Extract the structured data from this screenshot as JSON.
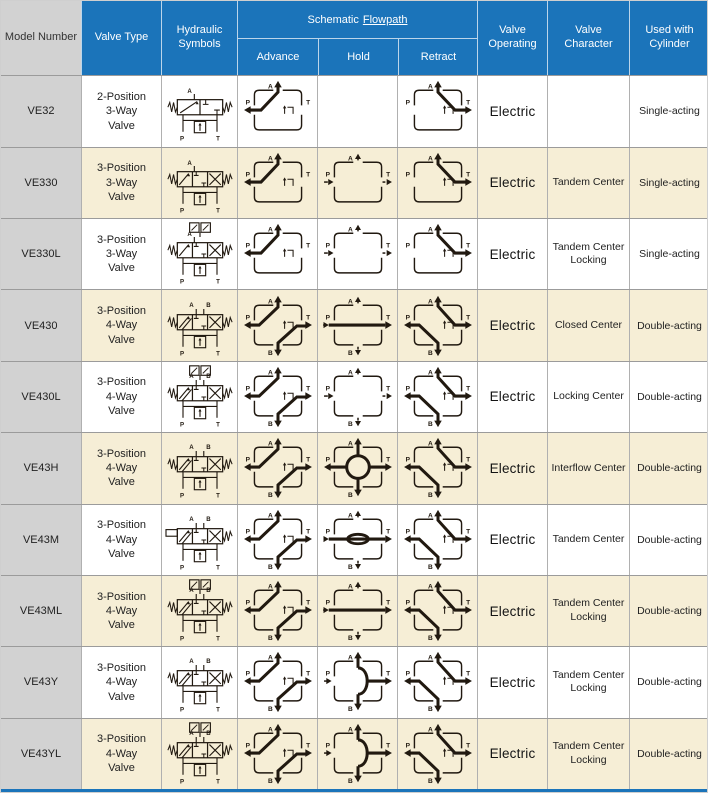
{
  "colors": {
    "header_blue": "#1b74ba",
    "header_text": "#ffffff",
    "model_col_bg": "#d2d2d2",
    "row_bg": "#ffffff",
    "row_alt_bg": "#f6eed6",
    "grid_line": "#9b9b9b",
    "ink": "#211910"
  },
  "diagram_labels": {
    "top": "A",
    "bottom": "B",
    "left": "P",
    "right": "T"
  },
  "table": {
    "headers": {
      "model": "Model Number",
      "valve_type": "Valve Type",
      "hydraulic_symbols": "Hydraulic Symbols",
      "schematic_prefix": "Schematic",
      "schematic_suffix": "Flowpath",
      "advance": "Advance",
      "hold": "Hold",
      "retract": "Retract",
      "valve_operating": "Valve Operating",
      "valve_character": "Valve Character",
      "used_with_cylinder": "Used with Cylinder"
    },
    "rows": [
      {
        "model": "VE32",
        "valve_type": [
          "2-Position",
          "3-Way",
          "Valve"
        ],
        "hydraulic_symbol": {
          "positions": 2,
          "ways": 3,
          "locking": false,
          "lever": false
        },
        "flowpath": {
          "ways": 3,
          "advance": "PA",
          "hold": "none",
          "retract": "AT"
        },
        "valve_operating": "Electric",
        "valve_character": "",
        "used_with_cylinder": "Single-acting"
      },
      {
        "model": "VE330",
        "valve_type": [
          "3-Position",
          "3-Way",
          "Valve"
        ],
        "hydraulic_symbol": {
          "positions": 3,
          "ways": 3,
          "locking": false,
          "lever": false
        },
        "flowpath": {
          "ways": 3,
          "advance": "PA",
          "hold": "blocked",
          "retract": "AT"
        },
        "valve_operating": "Electric",
        "valve_character": "Tandem Center",
        "used_with_cylinder": "Single-acting"
      },
      {
        "model": "VE330L",
        "valve_type": [
          "3-Position",
          "3-Way",
          "Valve"
        ],
        "hydraulic_symbol": {
          "positions": 3,
          "ways": 3,
          "locking": true,
          "lever": false
        },
        "flowpath": {
          "ways": 3,
          "advance": "PA",
          "hold": "blocked",
          "retract": "AT"
        },
        "valve_operating": "Electric",
        "valve_character": "Tandem Center Locking",
        "used_with_cylinder": "Single-acting"
      },
      {
        "model": "VE430",
        "valve_type": [
          "3-Position",
          "4-Way",
          "Valve"
        ],
        "hydraulic_symbol": {
          "positions": 3,
          "ways": 4,
          "locking": false,
          "lever": false
        },
        "flowpath": {
          "ways": 4,
          "advance": "PA_BT",
          "hold": "PT",
          "retract": "PB_AT"
        },
        "valve_operating": "Electric",
        "valve_character": "Closed Center",
        "used_with_cylinder": "Double-acting"
      },
      {
        "model": "VE430L",
        "valve_type": [
          "3-Position",
          "4-Way",
          "Valve"
        ],
        "hydraulic_symbol": {
          "positions": 3,
          "ways": 4,
          "locking": true,
          "lever": false
        },
        "flowpath": {
          "ways": 4,
          "advance": "PA_BT",
          "hold": "blocked",
          "retract": "PB_AT"
        },
        "valve_operating": "Electric",
        "valve_character": "Locking Center",
        "used_with_cylinder": "Double-acting"
      },
      {
        "model": "VE43H",
        "valve_type": [
          "3-Position",
          "4-Way",
          "Valve"
        ],
        "hydraulic_symbol": {
          "positions": 3,
          "ways": 4,
          "locking": false,
          "lever": false
        },
        "flowpath": {
          "ways": 4,
          "advance": "PA_BT",
          "hold": "circle",
          "retract": "PB_AT"
        },
        "valve_operating": "Electric",
        "valve_character": "Interflow Center",
        "used_with_cylinder": "Double-acting"
      },
      {
        "model": "VE43M",
        "valve_type": [
          "3-Position",
          "4-Way",
          "Valve"
        ],
        "hydraulic_symbol": {
          "positions": 3,
          "ways": 4,
          "locking": false,
          "lever": true
        },
        "flowpath": {
          "ways": 4,
          "advance": "PA_BT",
          "hold": "PT_capsule",
          "retract": "PB_AT"
        },
        "valve_operating": "Electric",
        "valve_character": "Tandem Center",
        "used_with_cylinder": "Double-acting"
      },
      {
        "model": "VE43ML",
        "valve_type": [
          "3-Position",
          "4-Way",
          "Valve"
        ],
        "hydraulic_symbol": {
          "positions": 3,
          "ways": 4,
          "locking": true,
          "lever": false
        },
        "flowpath": {
          "ways": 4,
          "advance": "PA_BT",
          "hold": "PT",
          "retract": "PB_AT"
        },
        "valve_operating": "Electric",
        "valve_character": "Tandem Center Locking",
        "used_with_cylinder": "Double-acting"
      },
      {
        "model": "VE43Y",
        "valve_type": [
          "3-Position",
          "4-Way",
          "Valve"
        ],
        "hydraulic_symbol": {
          "positions": 3,
          "ways": 4,
          "locking": false,
          "lever": false
        },
        "flowpath": {
          "ways": 4,
          "advance": "PA_BT",
          "hold": "AB_arc",
          "retract": "PB_AT"
        },
        "valve_operating": "Electric",
        "valve_character": "Tandem Center Locking",
        "used_with_cylinder": "Double-acting"
      },
      {
        "model": "VE43YL",
        "valve_type": [
          "3-Position",
          "4-Way",
          "Valve"
        ],
        "hydraulic_symbol": {
          "positions": 3,
          "ways": 4,
          "locking": true,
          "lever": false
        },
        "flowpath": {
          "ways": 4,
          "advance": "PA_BT",
          "hold": "AB_arc",
          "retract": "PB_AT"
        },
        "valve_operating": "Electric",
        "valve_character": "Tandem Center Locking",
        "used_with_cylinder": "Double-acting"
      }
    ]
  }
}
